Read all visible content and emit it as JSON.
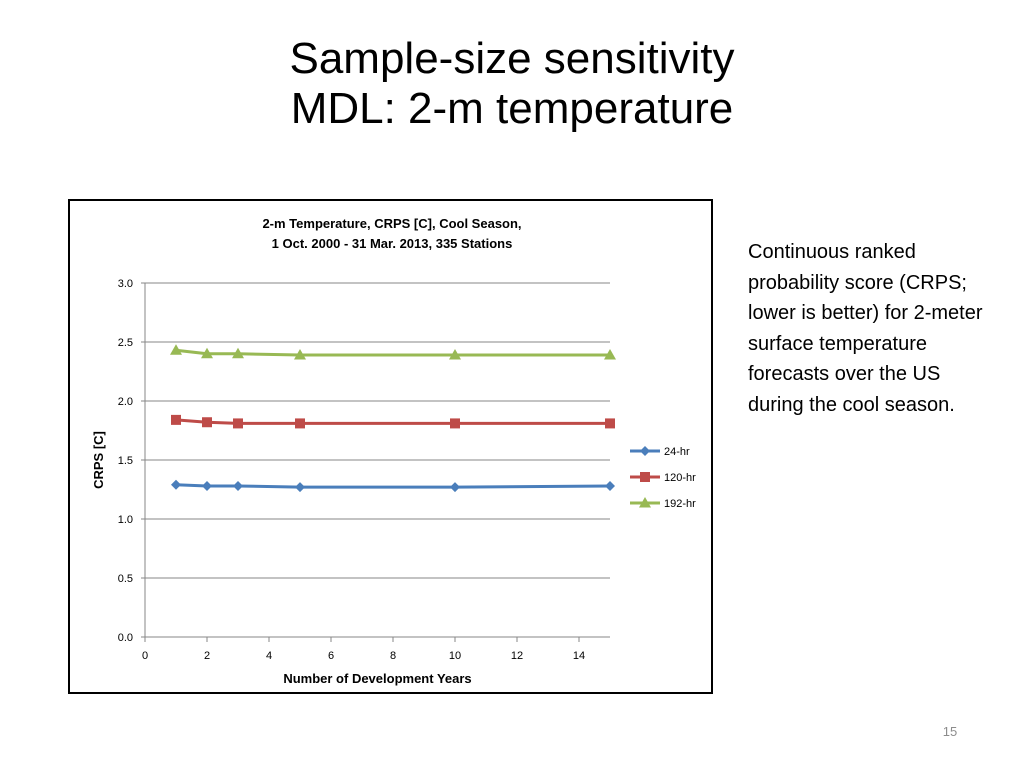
{
  "slide": {
    "title_line1": "Sample-size sensitivity",
    "title_line2": "MDL: 2-m temperature",
    "description": "Continuous ranked probability score (CRPS; lower is better) for 2-meter surface temperature forecasts over the US during the cool season.",
    "page_number": "15"
  },
  "chart_data": {
    "type": "line",
    "title_lines": [
      "2-m Temperature, CRPS [C], Cool Season,",
      "1 Oct. 2000 - 31 Mar. 2013, 335 Stations"
    ],
    "xlabel": "Number of Development Years",
    "ylabel": "CRPS [C]",
    "xlim": [
      0,
      15
    ],
    "ylim": [
      0,
      3.0
    ],
    "x_ticks": [
      0,
      2,
      4,
      6,
      8,
      10,
      12,
      14
    ],
    "y_ticks": [
      "0.0",
      "0.5",
      "1.0",
      "1.5",
      "2.0",
      "2.5",
      "3.0"
    ],
    "grid": "horizontal",
    "legend_position": "right",
    "x": [
      1,
      2,
      3,
      5,
      10,
      15
    ],
    "series": [
      {
        "name": "24-hr",
        "values": [
          1.29,
          1.28,
          1.28,
          1.27,
          1.27,
          1.28
        ],
        "color": "#4a7ebb",
        "marker": "diamond"
      },
      {
        "name": "120-hr",
        "values": [
          1.84,
          1.82,
          1.81,
          1.81,
          1.81,
          1.81
        ],
        "color": "#be4b48",
        "marker": "square"
      },
      {
        "name": "192-hr",
        "values": [
          2.43,
          2.4,
          2.4,
          2.39,
          2.39,
          2.39
        ],
        "color": "#98b954",
        "marker": "triangle"
      }
    ]
  }
}
